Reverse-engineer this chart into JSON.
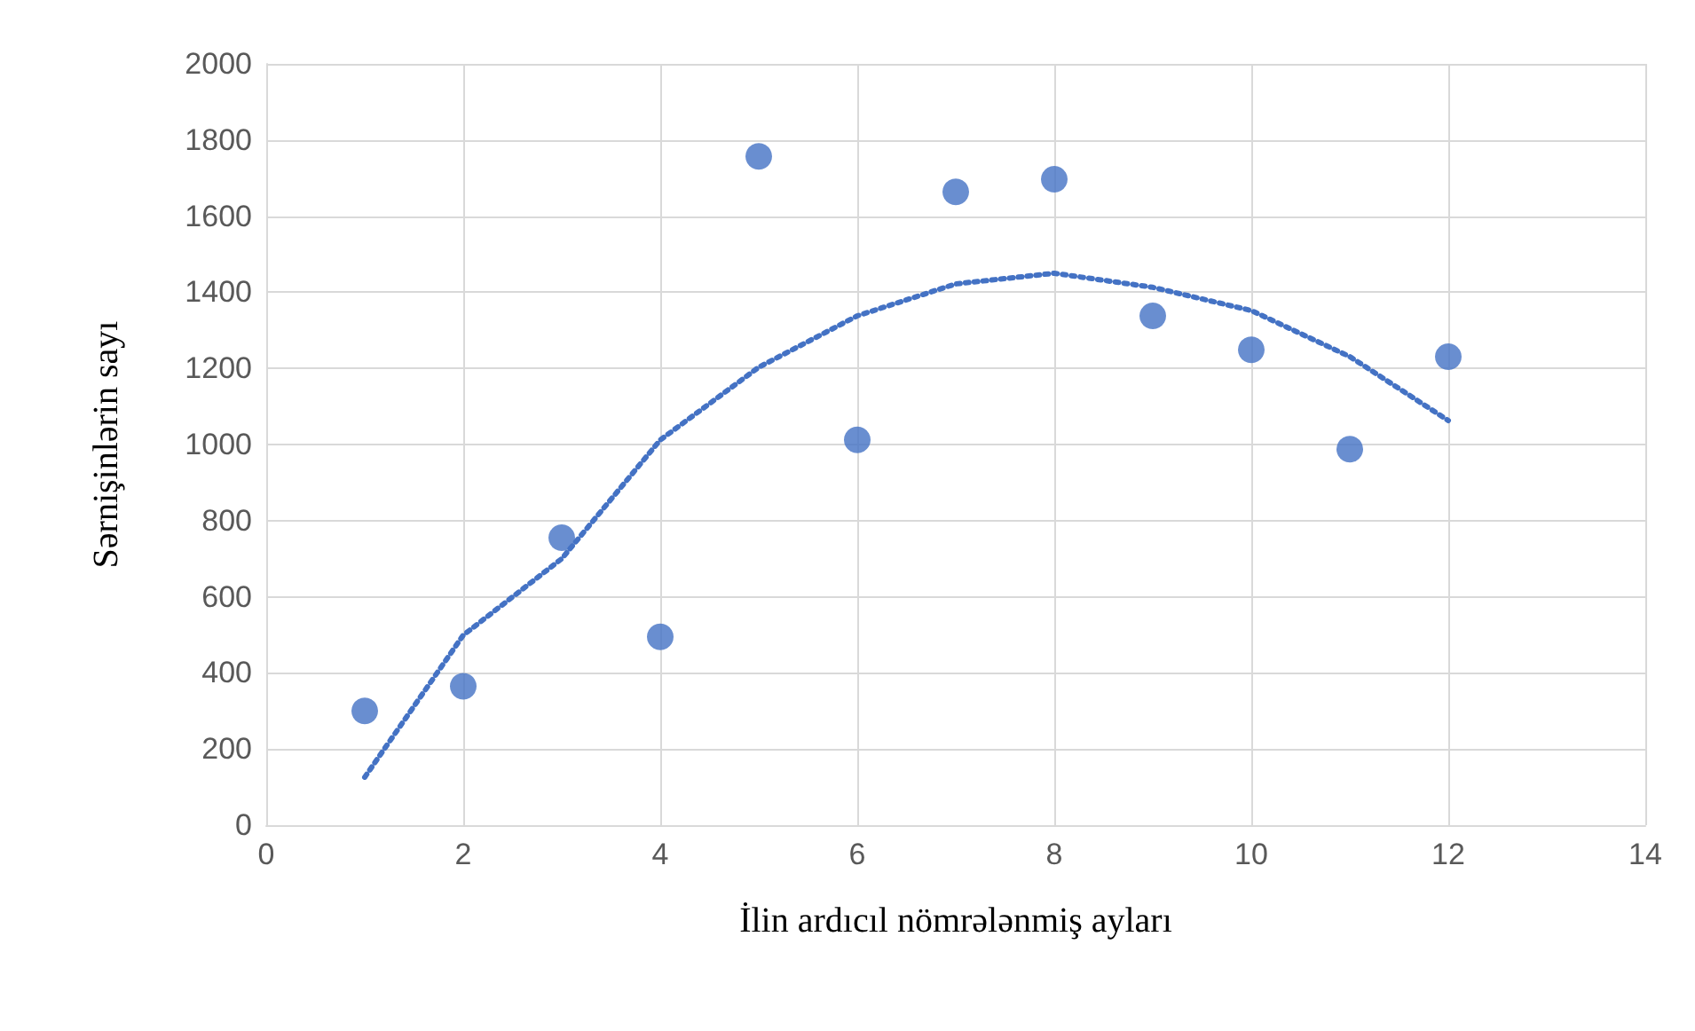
{
  "chart_data": {
    "type": "scatter",
    "xlabel": "İlin ardıcıl nömrələnmiş ayları",
    "ylabel": "Sərnişinlərin sayı",
    "xlim": [
      0,
      14
    ],
    "xticks": [
      0,
      2,
      4,
      6,
      8,
      10,
      12,
      14
    ],
    "ylim": [
      0,
      2000
    ],
    "yticks": [
      0,
      200,
      400,
      600,
      800,
      1000,
      1200,
      1400,
      1600,
      1800,
      2000
    ],
    "grid": true,
    "marker": "circle",
    "series": [
      {
        "color": "#4472c4",
        "x": [
          1,
          2,
          3,
          4,
          5,
          6,
          7,
          8,
          9,
          10,
          11,
          12
        ],
        "values": [
          300,
          365,
          755,
          495,
          1757,
          1012,
          1664,
          1697,
          1338,
          1249,
          988,
          1231
        ]
      },
      {
        "type": "line",
        "color": "#4472c4",
        "line_style": "dotted",
        "marker": "none",
        "x": [
          1,
          2,
          3,
          4,
          5,
          6,
          7,
          8,
          9,
          10,
          11,
          12
        ],
        "values": [
          126,
          499,
          700,
          1012,
          1203,
          1338,
          1422,
          1450,
          1413,
          1352,
          1231,
          1063
        ]
      }
    ]
  }
}
